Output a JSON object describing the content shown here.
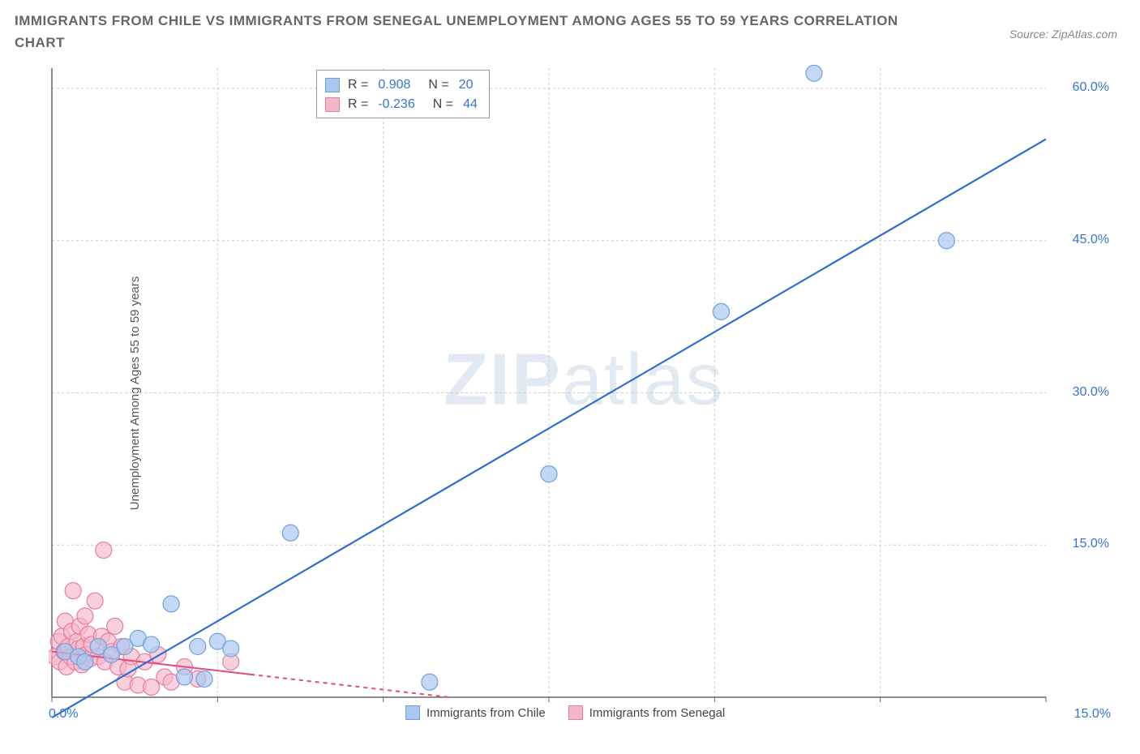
{
  "title": "IMMIGRANTS FROM CHILE VS IMMIGRANTS FROM SENEGAL UNEMPLOYMENT AMONG AGES 55 TO 59 YEARS CORRELATION CHART",
  "source": "Source: ZipAtlas.com",
  "ylabel": "Unemployment Among Ages 55 to 59 years",
  "watermark": {
    "bold": "ZIP",
    "rest": "atlas"
  },
  "chart": {
    "type": "scatter-with-regression",
    "background": "#ffffff",
    "plot_border_color": "#666666",
    "grid_color": "#cccccc",
    "grid_dash": "3,3",
    "xlim": [
      0,
      15
    ],
    "ylim": [
      0,
      62
    ],
    "x_tick_positions": [
      0,
      2.5,
      5,
      7.5,
      10,
      12.5,
      15
    ],
    "y_tick_values": [
      15,
      30,
      45,
      60
    ],
    "y_tick_labels": [
      "15.0%",
      "30.0%",
      "45.0%",
      "60.0%"
    ],
    "x0_label": "0.0%",
    "xmax_label": "15.0%",
    "series": [
      {
        "name": "Immigrants from Chile",
        "color_fill": "#a9c7ef",
        "color_stroke": "#6fa0de",
        "marker_opacity": 0.7,
        "marker_radius": 10,
        "line_color": "#2f6fd0",
        "line_width": 2.2,
        "line_dash_after_xmax": false,
        "R": "0.908",
        "N": "20",
        "regression": {
          "x1": 0,
          "y1": -2,
          "x2": 15,
          "y2": 55
        },
        "points": [
          {
            "x": 0.2,
            "y": 4.5
          },
          {
            "x": 0.4,
            "y": 4.0
          },
          {
            "x": 0.5,
            "y": 3.5
          },
          {
            "x": 0.7,
            "y": 5.0
          },
          {
            "x": 0.9,
            "y": 4.2
          },
          {
            "x": 1.1,
            "y": 5.0
          },
          {
            "x": 1.3,
            "y": 5.8
          },
          {
            "x": 1.5,
            "y": 5.2
          },
          {
            "x": 1.8,
            "y": 9.2
          },
          {
            "x": 2.0,
            "y": 2.0
          },
          {
            "x": 2.2,
            "y": 5.0
          },
          {
            "x": 2.3,
            "y": 1.8
          },
          {
            "x": 2.5,
            "y": 5.5
          },
          {
            "x": 2.7,
            "y": 4.8
          },
          {
            "x": 3.6,
            "y": 16.2
          },
          {
            "x": 5.7,
            "y": 1.5
          },
          {
            "x": 7.5,
            "y": 22.0
          },
          {
            "x": 10.1,
            "y": 38.0
          },
          {
            "x": 11.5,
            "y": 61.5
          },
          {
            "x": 13.5,
            "y": 45.0
          }
        ]
      },
      {
        "name": "Immigrants from Senegal",
        "color_fill": "#f4b7ca",
        "color_stroke": "#e87ba0",
        "marker_opacity": 0.65,
        "marker_radius": 10,
        "line_color": "#e34b7b",
        "line_width": 2.0,
        "line_dash_after_x": 3.0,
        "R": "-0.236",
        "N": "44",
        "regression": {
          "x1": 0,
          "y1": 4.5,
          "x2": 6.0,
          "y2": 0
        },
        "points": [
          {
            "x": 0.05,
            "y": 4.0
          },
          {
            "x": 0.1,
            "y": 5.5
          },
          {
            "x": 0.12,
            "y": 3.5
          },
          {
            "x": 0.15,
            "y": 6.0
          },
          {
            "x": 0.18,
            "y": 4.5
          },
          {
            "x": 0.2,
            "y": 7.5
          },
          {
            "x": 0.22,
            "y": 3.0
          },
          {
            "x": 0.25,
            "y": 5.0
          },
          {
            "x": 0.28,
            "y": 4.0
          },
          {
            "x": 0.3,
            "y": 6.5
          },
          {
            "x": 0.32,
            "y": 10.5
          },
          {
            "x": 0.35,
            "y": 3.5
          },
          {
            "x": 0.38,
            "y": 5.5
          },
          {
            "x": 0.4,
            "y": 4.8
          },
          {
            "x": 0.42,
            "y": 7.0
          },
          {
            "x": 0.45,
            "y": 3.2
          },
          {
            "x": 0.48,
            "y": 5.0
          },
          {
            "x": 0.5,
            "y": 8.0
          },
          {
            "x": 0.52,
            "y": 4.2
          },
          {
            "x": 0.55,
            "y": 6.2
          },
          {
            "x": 0.58,
            "y": 3.8
          },
          {
            "x": 0.6,
            "y": 5.2
          },
          {
            "x": 0.65,
            "y": 9.5
          },
          {
            "x": 0.7,
            "y": 4.0
          },
          {
            "x": 0.75,
            "y": 6.0
          },
          {
            "x": 0.78,
            "y": 14.5
          },
          {
            "x": 0.8,
            "y": 3.5
          },
          {
            "x": 0.85,
            "y": 5.5
          },
          {
            "x": 0.9,
            "y": 4.5
          },
          {
            "x": 0.95,
            "y": 7.0
          },
          {
            "x": 1.0,
            "y": 3.0
          },
          {
            "x": 1.05,
            "y": 5.0
          },
          {
            "x": 1.1,
            "y": 1.5
          },
          {
            "x": 1.15,
            "y": 2.8
          },
          {
            "x": 1.2,
            "y": 4.0
          },
          {
            "x": 1.3,
            "y": 1.2
          },
          {
            "x": 1.4,
            "y": 3.5
          },
          {
            "x": 1.5,
            "y": 1.0
          },
          {
            "x": 1.6,
            "y": 4.2
          },
          {
            "x": 1.7,
            "y": 2.0
          },
          {
            "x": 1.8,
            "y": 1.5
          },
          {
            "x": 2.0,
            "y": 3.0
          },
          {
            "x": 2.2,
            "y": 1.8
          },
          {
            "x": 2.7,
            "y": 3.5
          }
        ]
      }
    ]
  },
  "stats_labels": {
    "R": "R =",
    "N": "N ="
  },
  "legend": [
    {
      "label": "Immigrants from Chile",
      "fill": "#a9c7ef",
      "stroke": "#6fa0de"
    },
    {
      "label": "Immigrants from Senegal",
      "fill": "#f4b7ca",
      "stroke": "#e87ba0"
    }
  ]
}
